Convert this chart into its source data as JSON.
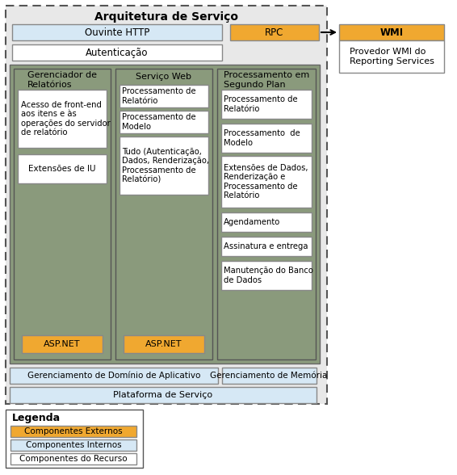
{
  "title": "Arquitetura de Serviço",
  "bg_outer": "#e8e8e8",
  "bg_inner_gray": "#8a9a7c",
  "bg_light_blue": "#d6e8f5",
  "bg_white": "#ffffff",
  "bg_orange": "#f0a830",
  "border_dark": "#555555",
  "border_gray": "#888888",
  "text_color": "#000000",
  "legend_title": "Legenda",
  "legend_items": [
    {
      "label": "Componentes Externos",
      "color": "#f0a830"
    },
    {
      "label": "Componentes Internos",
      "color": "#d6e8f5"
    },
    {
      "label": "Componentes do Recurso",
      "color": "#ffffff"
    }
  ],
  "ouvinte_http": "Ouvinte HTTP",
  "autenticacao": "Autenticação",
  "rpc": "RPC",
  "wmi": "WMI",
  "wmi_desc": "Provedor WMI do\nReporting Services",
  "gerenciador_title": "Gerenciador de\nRelatórios",
  "servico_web_title": "Serviço Web",
  "processamento_title": "Processamento em\nSegundo Plan",
  "gda_label": "Gerenciamento de Domínio de Aplicativo",
  "gm_label": "Gerenciamento de Memória",
  "ps_label": "Plataforma de Serviço",
  "aspnet": "ASP.NET",
  "gr_boxes": [
    "Acesso de front-end\naos itens e às\noperações do servidor\nde relatório",
    "Extensões de IU"
  ],
  "sw_boxes": [
    "Processamento de\nRelatório",
    "Processamento de\nModelo",
    "Tudo (Autenticação,\nDados, Renderização,\nProcessamento de\nRelatório)"
  ],
  "proc_boxes": [
    "Processamento de\nRelatório",
    "Processamento  de\nModelo",
    "Extensões de Dados,\nRenderização e\nProcessamento de\nRelatório",
    "Agendamento",
    "Assinatura e entrega",
    "Manutenção do Banco\nde Dados"
  ]
}
